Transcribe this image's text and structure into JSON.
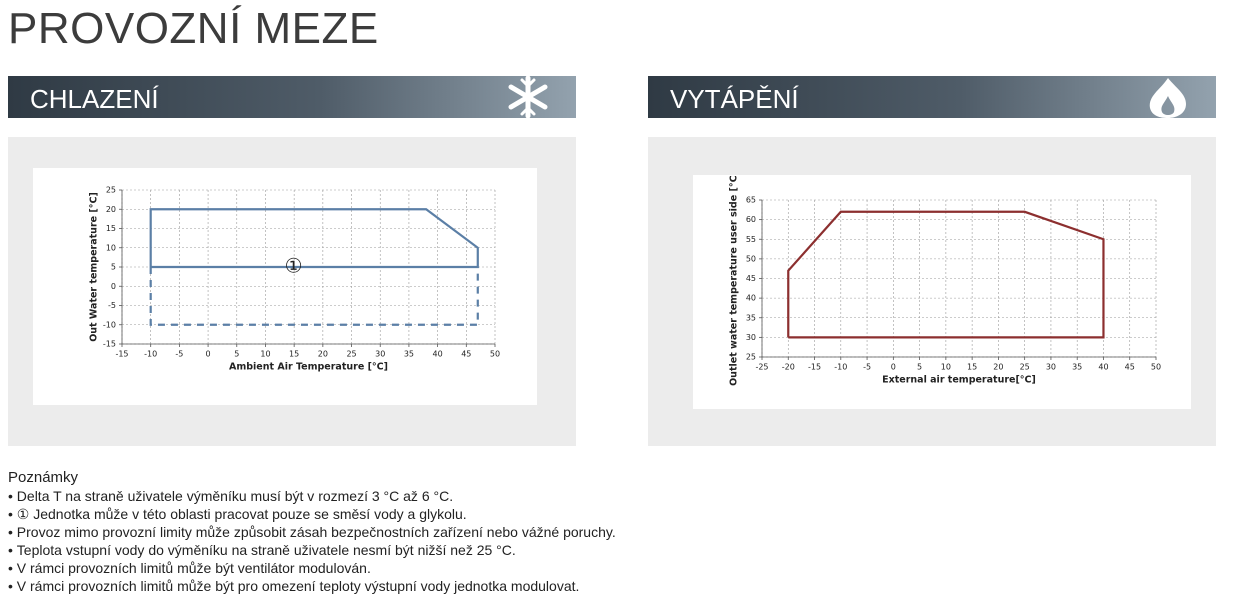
{
  "title": "PROVOZNÍ MEZE",
  "sections": [
    {
      "title": "CHLAZENÍ"
    },
    {
      "title": "VYTÁPĚNÍ"
    }
  ],
  "chart_data": [
    {
      "type": "line",
      "xlabel": "Ambient Air Temperature [°C]",
      "ylabel": "Out Water temperature [°C]",
      "annotation": "①",
      "xlim": [
        -15,
        50
      ],
      "xticks": [
        -15,
        -10,
        -5,
        0,
        5,
        10,
        15,
        20,
        25,
        30,
        35,
        40,
        45,
        50
      ],
      "ylim": [
        -15,
        25
      ],
      "yticks": [
        -15,
        -10,
        -5,
        0,
        5,
        10,
        15,
        20,
        25
      ],
      "grid": true,
      "series": [
        {
          "color": "#5b7fa6",
          "line_style": "solid",
          "x": [
            -10,
            -10,
            38,
            47,
            47,
            -10
          ],
          "values": [
            5,
            20,
            20,
            10,
            5,
            5
          ]
        },
        {
          "color": "#5b7fa6",
          "line_style": "dashed",
          "x": [
            -10,
            -10,
            47,
            47
          ],
          "values": [
            5,
            -10,
            -10,
            5
          ]
        }
      ]
    },
    {
      "type": "line",
      "xlabel": "External air temperature[°C]",
      "ylabel": "Outlet water temperature user side [°C]",
      "xlim": [
        -25,
        50
      ],
      "xticks": [
        -25,
        -20,
        -15,
        -10,
        -5,
        0,
        5,
        10,
        15,
        20,
        25,
        30,
        35,
        40,
        45,
        50
      ],
      "ylim": [
        25,
        65
      ],
      "yticks": [
        25,
        30,
        35,
        40,
        45,
        50,
        55,
        60,
        65
      ],
      "grid": true,
      "series": [
        {
          "color": "#8c2f2f",
          "line_style": "solid",
          "x": [
            -20,
            -20,
            -10,
            25,
            40,
            40,
            -20
          ],
          "values": [
            30,
            47,
            62,
            62,
            55,
            30,
            30
          ]
        }
      ]
    }
  ],
  "notes": {
    "heading": "Poznámky",
    "items": [
      "Delta T na straně uživatele výměníku musí být v rozmezí 3 °C až 6 °C.",
      "① Jednotka může v této oblasti pracovat pouze se směsí vody a glykolu.",
      "Provoz mimo provozní limity může způsobit zásah bezpečnostních zařízení nebo vážné poruchy.",
      "Teplota vstupní vody do výměníku na straně uživatele nesmí být nižší než 25 °C.",
      "V rámci provozních limitů může být ventilátor modulován.",
      "V rámci provozních limitů může být pro omezení teploty výstupní vody jednotka modulovat."
    ]
  }
}
